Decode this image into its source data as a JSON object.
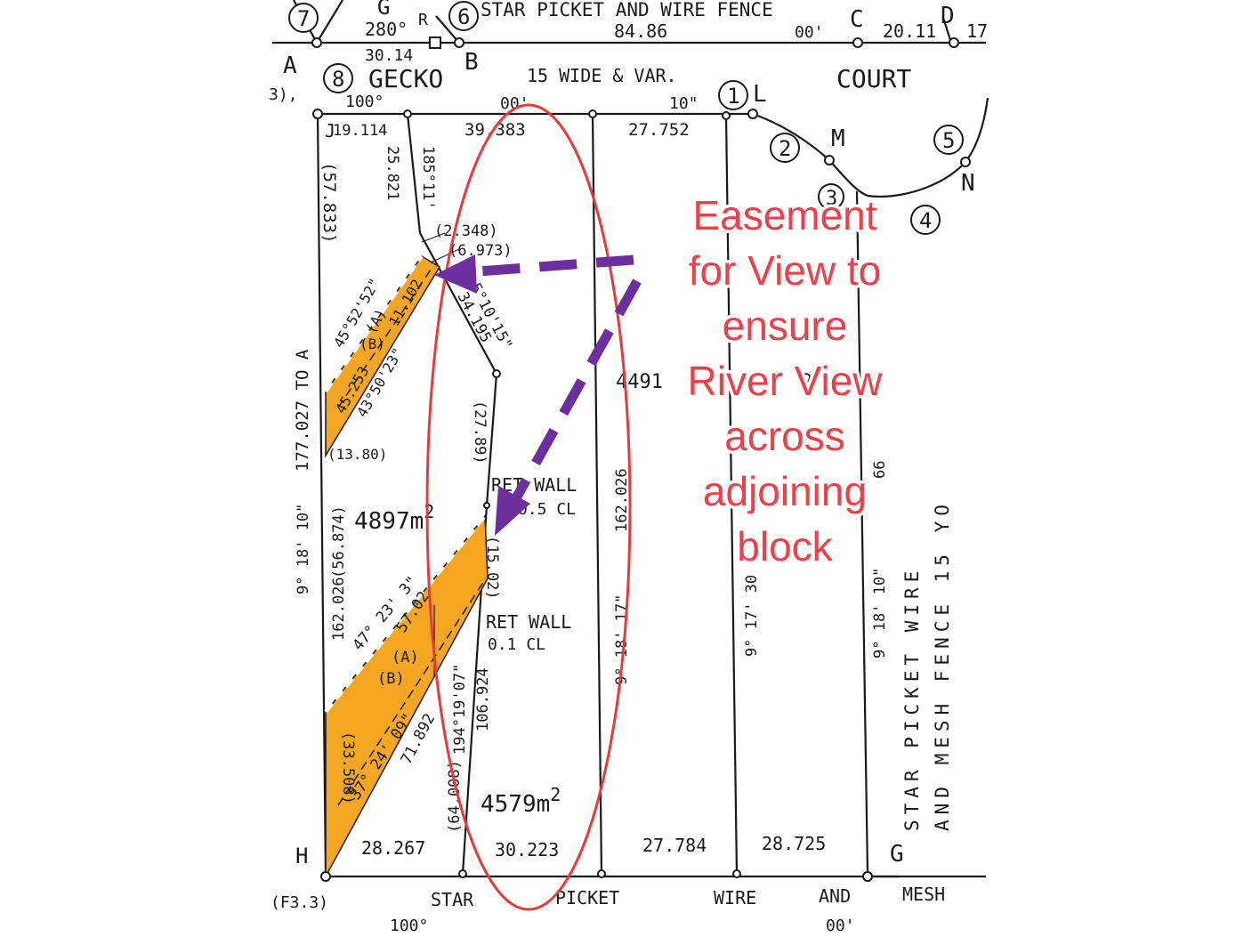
{
  "points": {
    "p7": "7",
    "p6": "6",
    "p8": "8",
    "p1": "1",
    "p2": "2",
    "p3": "3",
    "p4": "4",
    "p5": "5",
    "A": "A",
    "B": "B",
    "C": "C",
    "D": "D",
    "G_top": "G",
    "R": "R",
    "J": "J",
    "L": "L",
    "M": "M",
    "N": "N",
    "H": "H",
    "G": "G",
    "a1": "(A)",
    "b1": "(B)",
    "a2": "(A)",
    "b2": "(B)"
  },
  "top_fence": {
    "fence_label": "STAR PICKET AND WIRE FENCE",
    "dist_top": "84.86",
    "bearing_top": "280°",
    "dist_left": "30.14",
    "min_c": "00'",
    "dist_cd": "20.11",
    "right_cut": "17"
  },
  "road": {
    "name_left": "GECKO",
    "name_right": "COURT",
    "width": "15 WIDE & VAR.",
    "bearing_deg": "100°",
    "bearing_min": "00'",
    "bearing_sec": "10\"",
    "left_cut": "3),"
  },
  "frontages": {
    "f1": "19.114",
    "f2": "39.383",
    "f3": "27.752"
  },
  "lot_left": {
    "d1": "25.821",
    "d2": "185°11'",
    "d3": "(2.348)",
    "d4": "(6.973)",
    "d5": "(57.833)",
    "d6": "45°52'52\"",
    "d7": "11.102",
    "d8": "45.253",
    "d9": "43°50'23\"",
    "d10": "34.195",
    "d11": "5°10'15\"",
    "d12": "(13.80)",
    "d13": "(27.89)",
    "area": "4897",
    "area_unit": "m",
    "area_sup": "2",
    "d14": "177.027 TO A",
    "d15": "9° 18' 10\"",
    "d16": "(56.874)",
    "d17": "162.026",
    "ret_wall_1": "RET WALL",
    "ret_wall_1_cl": "0.5 CL"
  },
  "lot_bottom": {
    "d1": "47° 23' 3\"",
    "d2": "57.02",
    "d3": "(15.02)",
    "ret_wall_2": "RET WALL",
    "ret_wall_2_cl": "0.1 CL",
    "d4": "37° 24' 09\"",
    "d5": "71.892",
    "d6": "(33.508)",
    "d7": "106.924",
    "d8": "194°19'07\"",
    "d9": "(64.008)",
    "area": "4579",
    "area_unit": "m",
    "area_sup": "2"
  },
  "middle": {
    "d1": "4491",
    "d2": "2",
    "d3": "162.026",
    "d4": "9° 18' 17\"",
    "d5": "9° 17' 30",
    "d6": "9° 18' 10\"",
    "d7": "66"
  },
  "right_fence": {
    "line1": "STAR PICKET WIRE",
    "line2": "AND MESH FENCE 15 YO"
  },
  "bottom": {
    "d1": "28.267",
    "d2": "30.223",
    "d3": "27.784",
    "d4": "28.725",
    "ref": "(F3.3)",
    "w1": "STAR",
    "w2": "PICKET",
    "w3": "WIRE",
    "w4": "AND",
    "w5": "MESH",
    "bearing": "100°",
    "bearing_min": "00'"
  },
  "callout": {
    "lines": [
      "Easement",
      "for View to",
      "ensure",
      "River View",
      "across",
      "adjoining",
      "block"
    ],
    "color": "#ee3f4b"
  },
  "colors": {
    "easement_fill": "#f5a623",
    "arrow": "#6b2f9e",
    "highlight_ellipse": "#e8393c",
    "linework": "#1a1a1a"
  }
}
